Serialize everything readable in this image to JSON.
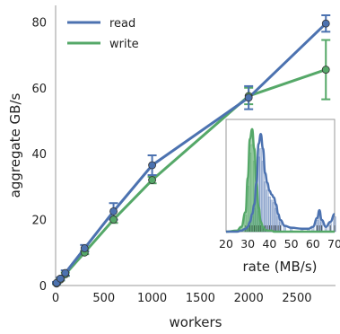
{
  "colors": {
    "read": "#4c72b0",
    "write": "#55a868",
    "axis": "#999999",
    "text": "#222222"
  },
  "chart_data": [
    {
      "type": "line",
      "xlabel": "workers",
      "ylabel": "aggregate GB/s",
      "xlim": [
        0,
        2900
      ],
      "ylim": [
        0,
        85
      ],
      "xticks": [
        "0",
        "500",
        "1000",
        "1500",
        "2000",
        "2500"
      ],
      "xtick_values": [
        0,
        500,
        1000,
        1500,
        2000,
        2500
      ],
      "yticks": [
        "0",
        "20",
        "40",
        "60",
        "80"
      ],
      "ytick_values": [
        0,
        20,
        40,
        60,
        80
      ],
      "grid": false,
      "legend": "top-left",
      "legend_entries": [
        "read",
        "write"
      ],
      "x": [
        10,
        50,
        100,
        300,
        600,
        1000,
        2000,
        2800
      ],
      "series": [
        {
          "name": "read",
          "values": [
            0.8,
            2.1,
            3.8,
            11.3,
            22.5,
            36.5,
            57.0,
            79.5
          ],
          "err": [
            0.3,
            0.4,
            0.8,
            1.0,
            2.5,
            3.0,
            3.5,
            2.5
          ]
        },
        {
          "name": "write",
          "values": [
            0.6,
            1.8,
            3.4,
            10.0,
            20.0,
            32.0,
            57.5,
            65.5
          ],
          "err": [
            0.2,
            0.3,
            0.5,
            0.5,
            1.0,
            1.0,
            2.5,
            9.0
          ]
        }
      ]
    },
    {
      "type": "area",
      "xlabel": "rate (MB/s)",
      "ylabel": "",
      "xlim": [
        20,
        70
      ],
      "xticks": [
        "20",
        "25",
        "30",
        "35",
        "40",
        "45",
        "50",
        "55",
        "60",
        "65",
        "70"
      ],
      "xtick_values": [
        20,
        25,
        30,
        35,
        40,
        45,
        50,
        55,
        60,
        65,
        70
      ],
      "ylim": [
        0,
        1.15
      ],
      "grid": false,
      "x": [
        20,
        25,
        27,
        29,
        30,
        31,
        32,
        33,
        34,
        35,
        36,
        37,
        38,
        39,
        40,
        41,
        42,
        43,
        44,
        45,
        47,
        50,
        55,
        58,
        60,
        62,
        63,
        64,
        66,
        68,
        70
      ],
      "series": [
        {
          "name": "read",
          "values": [
            0,
            0,
            0.01,
            0.03,
            0.05,
            0.1,
            0.18,
            0.28,
            0.5,
            0.9,
            1.0,
            0.85,
            0.6,
            0.5,
            0.42,
            0.38,
            0.35,
            0.28,
            0.18,
            0.12,
            0.06,
            0.04,
            0.03,
            0.03,
            0.05,
            0.14,
            0.22,
            0.12,
            0.05,
            0.1,
            0.18
          ]
        },
        {
          "name": "write",
          "values": [
            0,
            0.01,
            0.05,
            0.2,
            0.55,
            0.95,
            1.05,
            0.85,
            0.5,
            0.25,
            0.1,
            0.05,
            0.02,
            0.01,
            0.01,
            0.01,
            0,
            0,
            0,
            0,
            0,
            0,
            0,
            0,
            0,
            0,
            0,
            0,
            0,
            0,
            0
          ]
        }
      ]
    }
  ]
}
